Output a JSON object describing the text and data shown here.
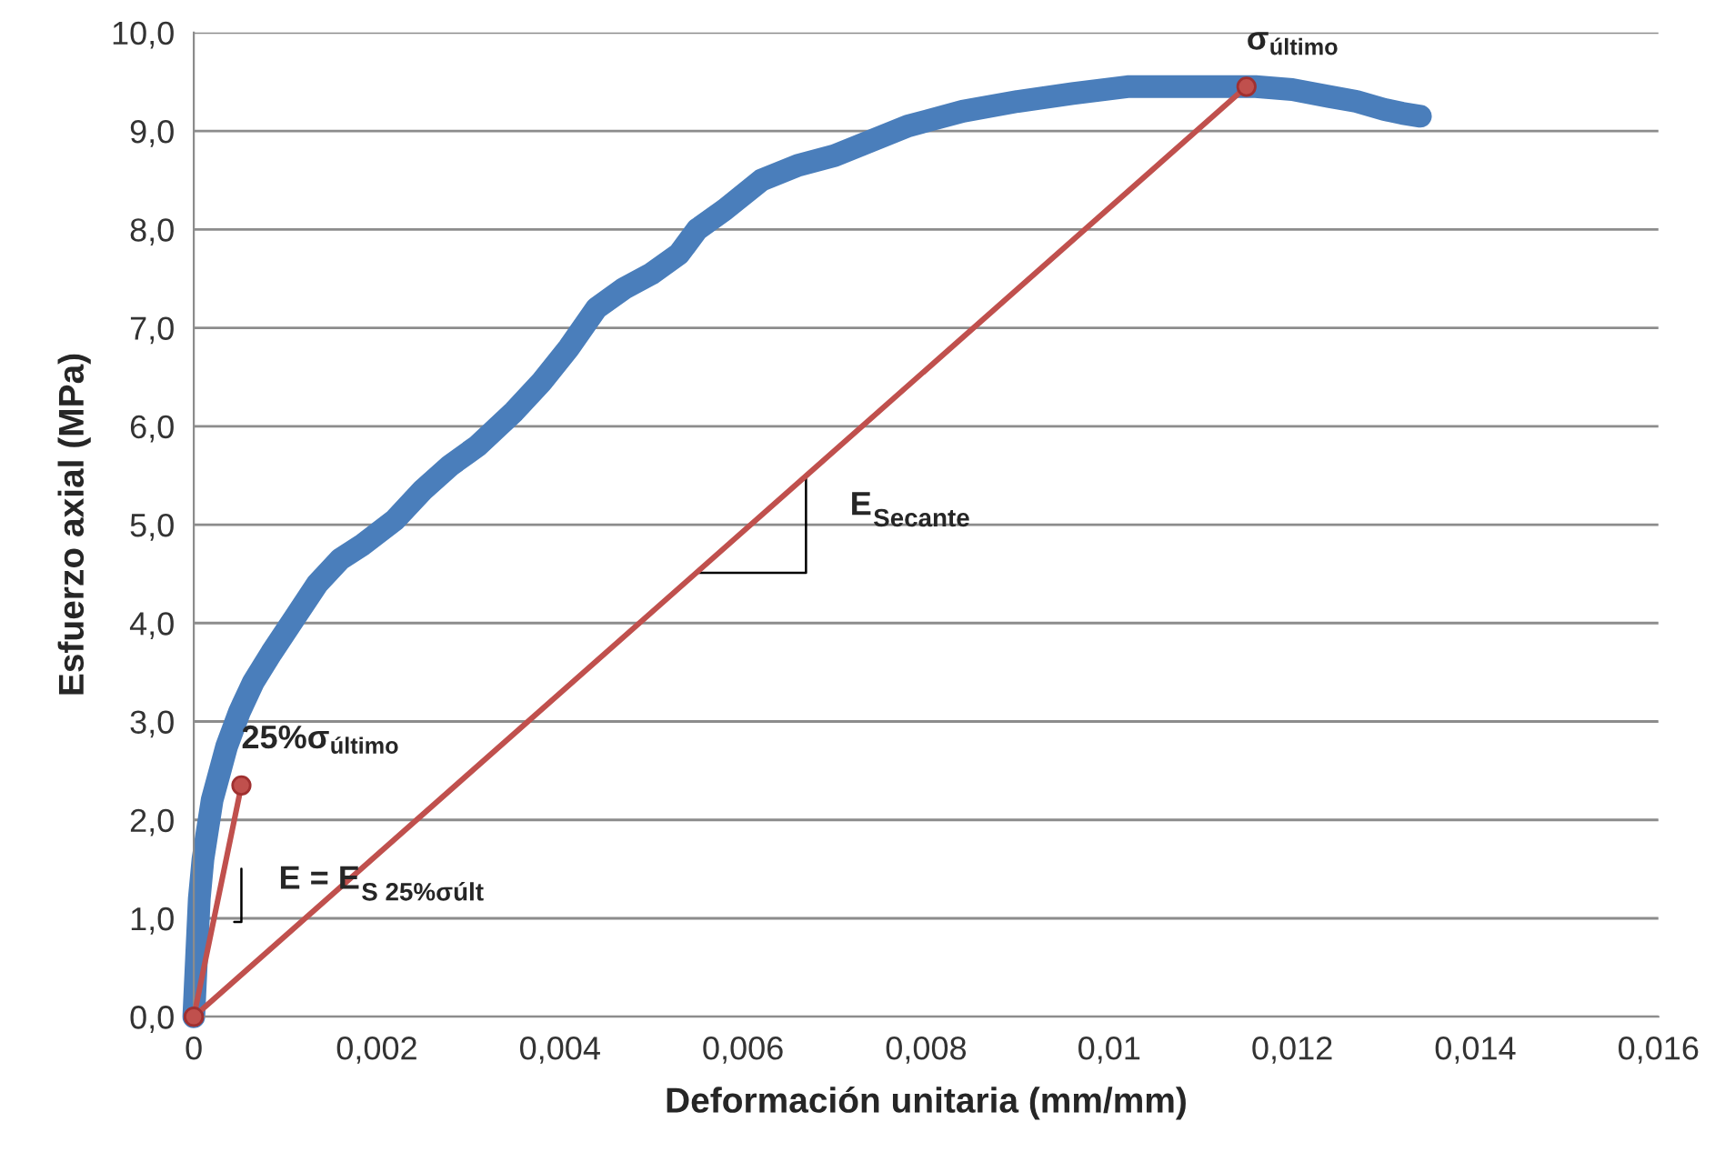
{
  "chart_data": {
    "type": "line",
    "xlabel": "Deformación unitaria (mm/mm)",
    "ylabel": "Esfuerzo axial (MPa)",
    "xlim": [
      0,
      0.016
    ],
    "ylim": [
      0,
      10
    ],
    "xticks": [
      {
        "value": 0,
        "label": "0"
      },
      {
        "value": 0.002,
        "label": "0,002"
      },
      {
        "value": 0.004,
        "label": "0,004"
      },
      {
        "value": 0.006,
        "label": "0,006"
      },
      {
        "value": 0.008,
        "label": "0,008"
      },
      {
        "value": 0.01,
        "label": "0,01"
      },
      {
        "value": 0.012,
        "label": "0,012"
      },
      {
        "value": 0.014,
        "label": "0,014"
      },
      {
        "value": 0.016,
        "label": "0,016"
      }
    ],
    "yticks": [
      {
        "value": 0,
        "label": "0,0"
      },
      {
        "value": 1,
        "label": "1,0"
      },
      {
        "value": 2,
        "label": "2,0"
      },
      {
        "value": 3,
        "label": "3,0"
      },
      {
        "value": 4,
        "label": "4,0"
      },
      {
        "value": 5,
        "label": "5,0"
      },
      {
        "value": 6,
        "label": "6,0"
      },
      {
        "value": 7,
        "label": "7,0"
      },
      {
        "value": 8,
        "label": "8,0"
      },
      {
        "value": 9,
        "label": "9,0"
      },
      {
        "value": 10,
        "label": "10,0"
      }
    ],
    "grid": "y",
    "series": [
      {
        "color": "#4a7ebb",
        "marker": "none",
        "x": [
          0,
          3e-05,
          6e-05,
          0.0001,
          0.0002,
          0.00036,
          0.0005,
          0.00065,
          0.00085,
          0.0011,
          0.00135,
          0.0016,
          0.00185,
          0.0022,
          0.0025,
          0.0028,
          0.0031,
          0.0035,
          0.0038,
          0.0041,
          0.0044,
          0.0047,
          0.005,
          0.0053,
          0.0055,
          0.0058,
          0.0062,
          0.0066,
          0.007,
          0.0074,
          0.0078,
          0.0084,
          0.009,
          0.0096,
          0.0102,
          0.0109,
          0.0116,
          0.012,
          0.0124,
          0.0127,
          0.013,
          0.0132,
          0.0134
        ],
        "values": [
          0,
          0.6,
          1.2,
          1.6,
          2.2,
          2.75,
          3.1,
          3.4,
          3.7,
          4.05,
          4.4,
          4.65,
          4.8,
          5.05,
          5.35,
          5.6,
          5.8,
          6.15,
          6.45,
          6.8,
          7.2,
          7.4,
          7.55,
          7.75,
          8.0,
          8.2,
          8.5,
          8.65,
          8.75,
          8.9,
          9.05,
          9.2,
          9.3,
          9.38,
          9.45,
          9.45,
          9.45,
          9.42,
          9.35,
          9.3,
          9.22,
          9.18,
          9.15
        ]
      },
      {
        "color": "#c0504d",
        "marker": "circle",
        "x": [
          0,
          0.00052
        ],
        "values": [
          0,
          2.35
        ]
      },
      {
        "color": "#c0504d",
        "marker": "circle",
        "x": [
          0,
          0.0115
        ],
        "values": [
          0,
          9.45
        ]
      }
    ],
    "annotations": [
      {
        "text": "σ$_{último}$",
        "x": 0.0115,
        "y": 9.45
      },
      {
        "text": "25%σ$_{último}$",
        "x": 0.00052,
        "y": 2.35
      },
      "E$_{Secante}$",
      "E = E$_{S 25%σúlt}$"
    ]
  }
}
